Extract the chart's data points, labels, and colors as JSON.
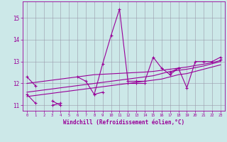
{
  "x": [
    0,
    1,
    2,
    3,
    4,
    5,
    6,
    7,
    8,
    9,
    10,
    11,
    12,
    13,
    14,
    15,
    16,
    17,
    18,
    19,
    20,
    21,
    22,
    23
  ],
  "line1": [
    12.3,
    11.9,
    null,
    11.2,
    11.0,
    null,
    12.3,
    12.1,
    11.5,
    12.9,
    14.2,
    15.4,
    12.1,
    12.1,
    12.1,
    13.2,
    12.7,
    12.4,
    12.7,
    11.8,
    13.0,
    13.0,
    13.0,
    13.2
  ],
  "line2": [
    11.5,
    11.1,
    null,
    11.0,
    11.1,
    null,
    null,
    null,
    11.5,
    11.6,
    null,
    null,
    12.0,
    12.0,
    12.0,
    null,
    null,
    12.5,
    12.7,
    null,
    null,
    null,
    null,
    13.1
  ],
  "trend1": [
    12.0,
    12.05,
    12.1,
    12.15,
    12.2,
    12.25,
    12.3,
    12.35,
    12.4,
    12.42,
    12.44,
    12.46,
    12.48,
    12.5,
    12.52,
    12.55,
    12.6,
    12.65,
    12.7,
    12.75,
    12.82,
    12.88,
    12.95,
    13.05
  ],
  "trend2": [
    11.4,
    11.45,
    11.5,
    11.55,
    11.6,
    11.65,
    11.7,
    11.75,
    11.8,
    11.85,
    11.9,
    11.95,
    12.0,
    12.05,
    12.1,
    12.15,
    12.2,
    12.3,
    12.4,
    12.45,
    12.55,
    12.65,
    12.75,
    12.85
  ],
  "trend3": [
    11.6,
    11.65,
    11.7,
    11.75,
    11.8,
    11.85,
    11.9,
    11.95,
    12.0,
    12.05,
    12.1,
    12.15,
    12.2,
    12.25,
    12.3,
    12.35,
    12.45,
    12.55,
    12.6,
    12.65,
    12.72,
    12.8,
    12.9,
    13.0
  ],
  "bg_color": "#cce8e8",
  "line_color": "#990099",
  "grid_color": "#9999aa",
  "xlabel": "Windchill (Refroidissement éolien,°C)",
  "xlim": [
    -0.5,
    23.5
  ],
  "ylim": [
    10.75,
    15.75
  ],
  "yticks": [
    11,
    12,
    13,
    14,
    15
  ],
  "xticks": [
    0,
    1,
    2,
    3,
    4,
    5,
    6,
    7,
    8,
    9,
    10,
    11,
    12,
    13,
    14,
    15,
    16,
    17,
    18,
    19,
    20,
    21,
    22,
    23
  ]
}
